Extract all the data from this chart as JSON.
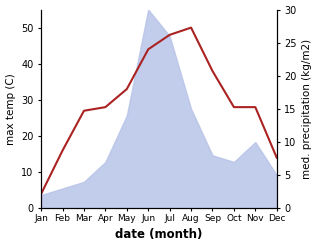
{
  "months": [
    "Jan",
    "Feb",
    "Mar",
    "Apr",
    "May",
    "Jun",
    "Jul",
    "Aug",
    "Sep",
    "Oct",
    "Nov",
    "Dec"
  ],
  "month_indices": [
    0,
    1,
    2,
    3,
    4,
    5,
    6,
    7,
    8,
    9,
    10,
    11
  ],
  "precipitation": [
    2,
    3,
    4,
    7,
    14,
    30,
    26,
    15,
    8,
    7,
    10,
    5
  ],
  "max_temp": [
    4,
    16,
    27,
    28,
    33,
    44,
    48,
    50,
    38,
    28,
    28,
    14
  ],
  "precip_fill_color": "#b8c4e8",
  "temp_color": "#aa2222",
  "left_ylabel": "max temp (C)",
  "right_ylabel": "med. precipitation (kg/m2)",
  "xlabel": "date (month)",
  "left_ylim": [
    0,
    55
  ],
  "right_ylim": [
    0,
    30
  ],
  "left_yticks": [
    0,
    10,
    20,
    30,
    40,
    50
  ],
  "right_yticks": [
    0,
    5,
    10,
    15,
    20,
    25,
    30
  ],
  "figsize": [
    3.18,
    2.47
  ],
  "dpi": 100
}
